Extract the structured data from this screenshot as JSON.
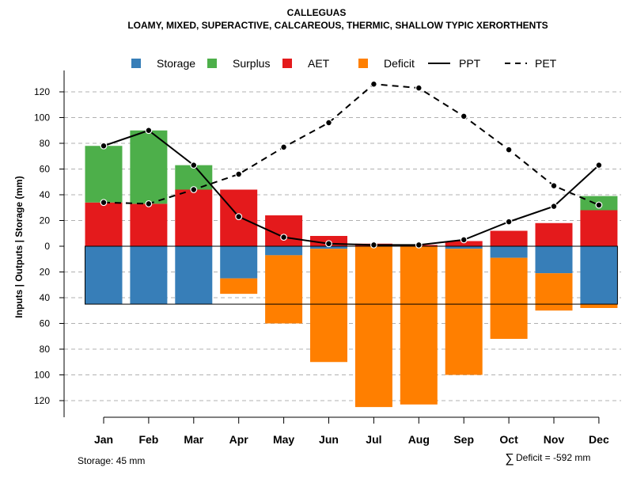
{
  "chart_data": {
    "type": "bar",
    "title": "CALLEGUAS",
    "subtitle": "LOAMY, MIXED, SUPERACTIVE, CALCAREOUS, THERMIC, SHALLOW TYPIC XERORTHENTS",
    "ylabel": "Inputs | Outputs | Storage    (mm)",
    "ylim": [
      -130,
      130
    ],
    "y_ticks": [
      120,
      100,
      80,
      60,
      40,
      20,
      0,
      -20,
      -40,
      -60,
      -80,
      -100,
      -120
    ],
    "y_tick_labels": [
      "120",
      "100",
      "80",
      "60",
      "40",
      "20",
      "0",
      "20",
      "40",
      "60",
      "80",
      "100",
      "120"
    ],
    "categories": [
      "Jan",
      "Feb",
      "Mar",
      "Apr",
      "May",
      "Jun",
      "Jul",
      "Aug",
      "Sep",
      "Oct",
      "Nov",
      "Dec"
    ],
    "legend": [
      {
        "label": "Storage",
        "kind": "box",
        "color": "#377EB8"
      },
      {
        "label": "Surplus",
        "kind": "box",
        "color": "#4DAF4A"
      },
      {
        "label": "AET",
        "kind": "box",
        "color": "#E41A1C"
      },
      {
        "label": "Deficit",
        "kind": "box",
        "color": "#FF7F00"
      },
      {
        "label": "PPT",
        "kind": "solid",
        "color": "#000000"
      },
      {
        "label": "PET",
        "kind": "dashed",
        "color": "#000000"
      }
    ],
    "series": [
      {
        "name": "AET",
        "color": "#E41A1C",
        "values": [
          34,
          33,
          44,
          44,
          24,
          8,
          2,
          1,
          4,
          12,
          18,
          28
        ]
      },
      {
        "name": "Surplus",
        "color": "#4DAF4A",
        "values": [
          44,
          57,
          19,
          0,
          0,
          0,
          0,
          0,
          0,
          0,
          0,
          11
        ]
      },
      {
        "name": "Storage",
        "color": "#377EB8",
        "values": [
          45,
          45,
          45,
          25,
          7,
          2,
          0,
          0,
          2,
          9,
          21,
          45
        ]
      },
      {
        "name": "Deficit",
        "color": "#FF7F00",
        "values": [
          0,
          0,
          0,
          12,
          53,
          88,
          125,
          123,
          98,
          63,
          29,
          3
        ]
      },
      {
        "name": "PPT",
        "color": "#000000",
        "values": [
          78,
          90,
          63,
          23,
          7,
          2,
          1,
          1,
          5,
          19,
          31,
          63
        ]
      },
      {
        "name": "PET",
        "color": "#000000",
        "values": [
          34,
          33,
          44,
          56,
          77,
          96,
          126,
          123,
          101,
          75,
          47,
          32
        ]
      }
    ],
    "storage_capacity": 45,
    "legend_position": "top",
    "grid": true,
    "footer_left": "Storage: 45 mm",
    "footer_right_symbol": "∑",
    "footer_right": "Deficit = -592 mm"
  }
}
